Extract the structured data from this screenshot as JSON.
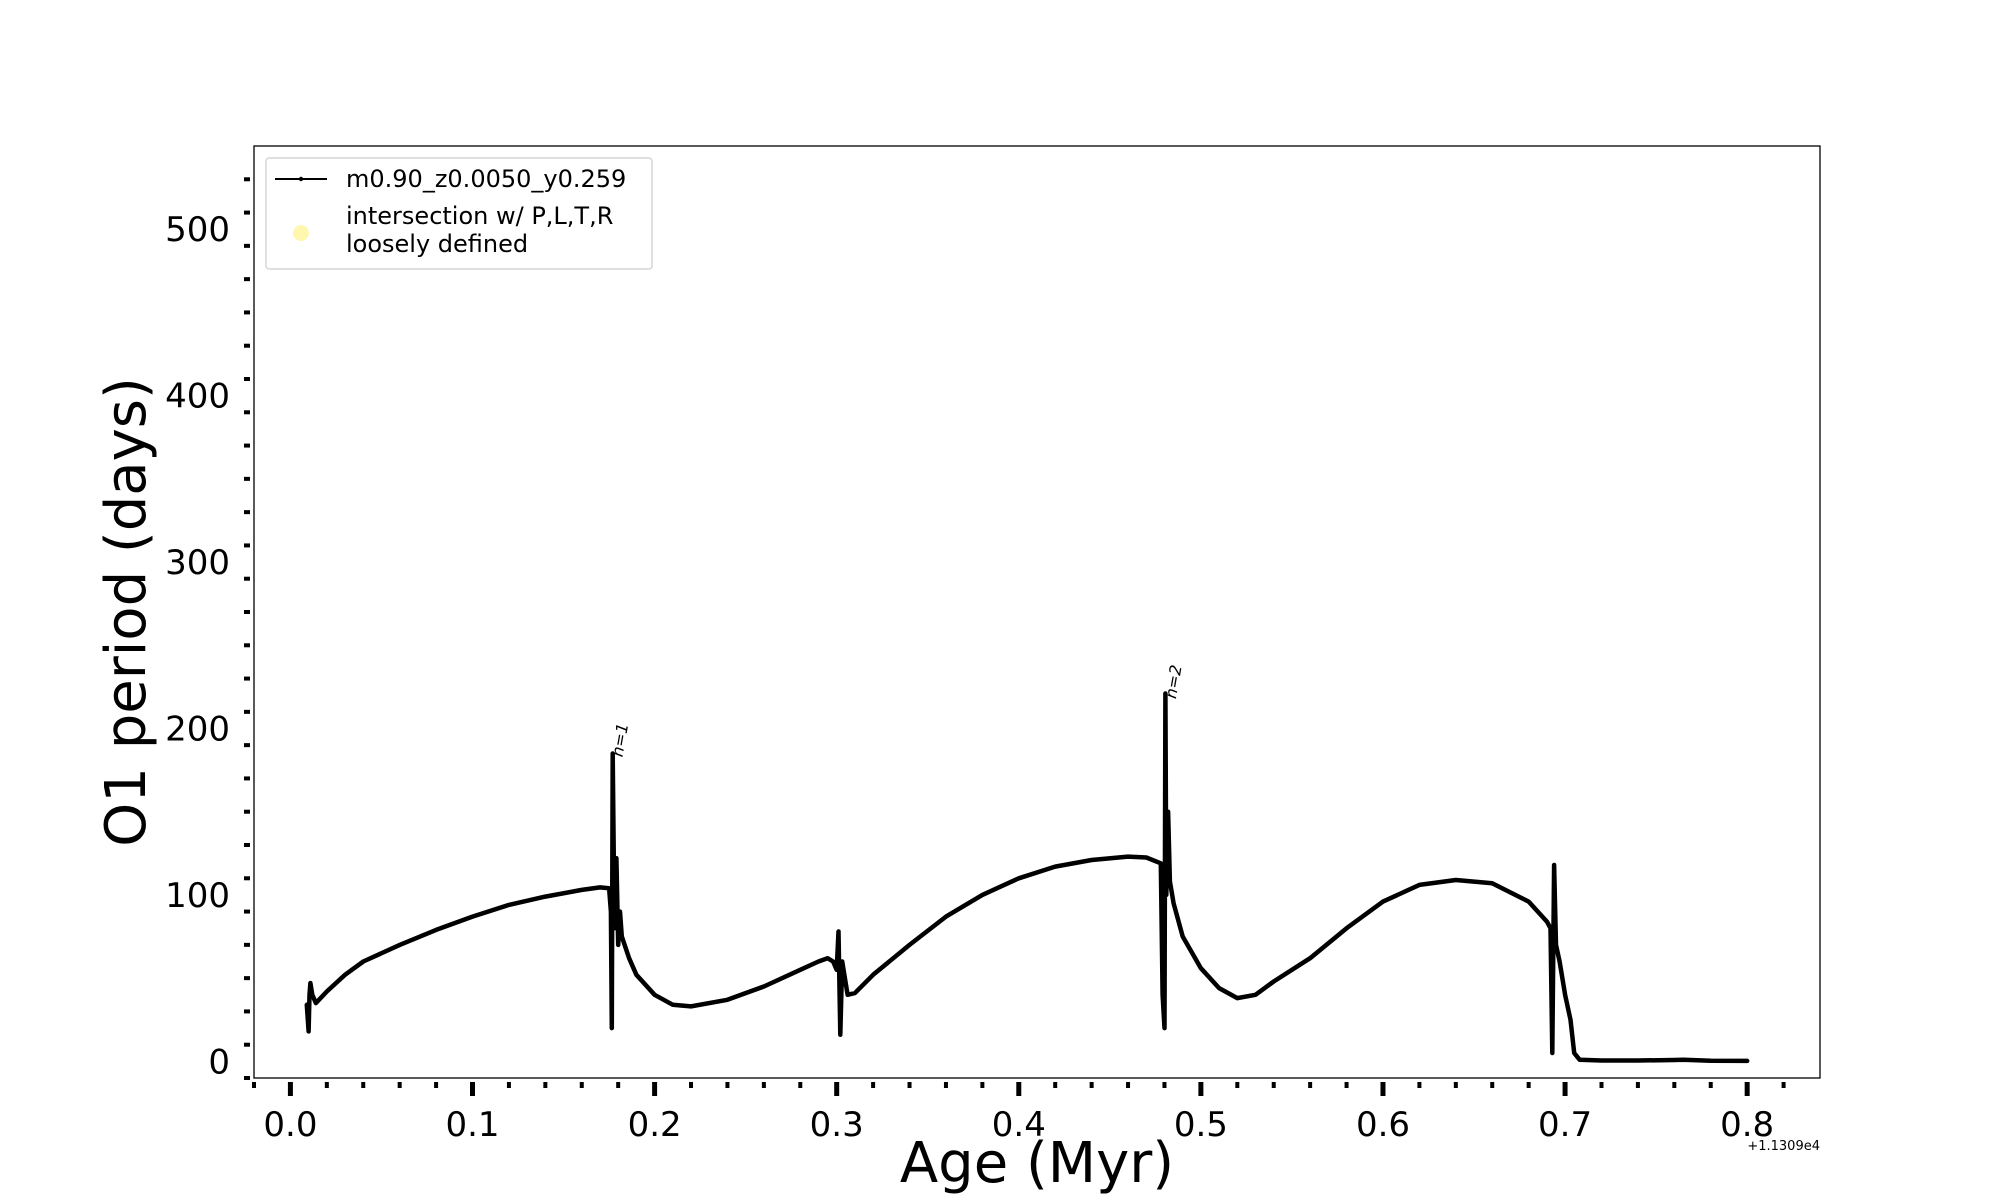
{
  "chart_data": {
    "type": "line",
    "title": "",
    "xlabel": "Age (Myr)",
    "ylabel": "O1 period (days)",
    "x_offset_label": "+1.1309e4",
    "xlim": [
      -0.02,
      0.84
    ],
    "ylim": [
      -10,
      550
    ],
    "x_ticks": [
      0.0,
      0.1,
      0.2,
      0.3,
      0.4,
      0.5,
      0.6,
      0.7,
      0.8
    ],
    "x_tick_labels": [
      "0.0",
      "0.1",
      "0.2",
      "0.3",
      "0.4",
      "0.5",
      "0.6",
      "0.7",
      "0.8"
    ],
    "y_ticks": [
      0,
      100,
      200,
      300,
      400,
      500
    ],
    "y_tick_labels": [
      "0",
      "100",
      "200",
      "300",
      "400",
      "500"
    ],
    "grid": false,
    "legend_position": "top-left",
    "legend": [
      {
        "label": "m0.90_z0.0050_y0.259",
        "marker": "line",
        "color": "#000000"
      },
      {
        "label": "intersection w/ P,L,T,R\nloosely defined",
        "marker": "circle",
        "color": "#fff7b0"
      }
    ],
    "annotations": [
      {
        "text": "n=1",
        "x": 0.179,
        "y": 185
      },
      {
        "text": "n=2",
        "x": 0.483,
        "y": 220
      }
    ],
    "series": [
      {
        "name": "m0.90_z0.0050_y0.259",
        "color": "#000000",
        "points": [
          [
            0.009,
            34
          ],
          [
            0.01,
            18
          ],
          [
            0.0105,
            40
          ],
          [
            0.011,
            47
          ],
          [
            0.012,
            40
          ],
          [
            0.014,
            35
          ],
          [
            0.02,
            42
          ],
          [
            0.03,
            52
          ],
          [
            0.04,
            60
          ],
          [
            0.06,
            70
          ],
          [
            0.08,
            79
          ],
          [
            0.1,
            87
          ],
          [
            0.12,
            94
          ],
          [
            0.14,
            99
          ],
          [
            0.16,
            103
          ],
          [
            0.17,
            104.5
          ],
          [
            0.175,
            104
          ],
          [
            0.176,
            90
          ],
          [
            0.1765,
            20
          ],
          [
            0.177,
            185
          ],
          [
            0.178,
            80
          ],
          [
            0.179,
            122
          ],
          [
            0.18,
            70
          ],
          [
            0.181,
            90
          ],
          [
            0.182,
            75
          ],
          [
            0.186,
            62
          ],
          [
            0.19,
            52
          ],
          [
            0.2,
            40
          ],
          [
            0.21,
            34
          ],
          [
            0.22,
            33
          ],
          [
            0.24,
            37
          ],
          [
            0.26,
            45
          ],
          [
            0.28,
            55
          ],
          [
            0.29,
            60
          ],
          [
            0.295,
            62
          ],
          [
            0.298,
            60
          ],
          [
            0.3,
            55
          ],
          [
            0.301,
            78
          ],
          [
            0.302,
            16
          ],
          [
            0.303,
            60
          ],
          [
            0.306,
            40
          ],
          [
            0.31,
            41
          ],
          [
            0.32,
            52
          ],
          [
            0.34,
            70
          ],
          [
            0.36,
            87
          ],
          [
            0.38,
            100
          ],
          [
            0.4,
            110
          ],
          [
            0.42,
            117
          ],
          [
            0.44,
            121
          ],
          [
            0.46,
            123
          ],
          [
            0.47,
            122.5
          ],
          [
            0.478,
            119
          ],
          [
            0.479,
            40
          ],
          [
            0.48,
            20
          ],
          [
            0.4805,
            221
          ],
          [
            0.481,
            100
          ],
          [
            0.482,
            150
          ],
          [
            0.483,
            108
          ],
          [
            0.485,
            95
          ],
          [
            0.49,
            75
          ],
          [
            0.5,
            56
          ],
          [
            0.51,
            44
          ],
          [
            0.52,
            38
          ],
          [
            0.53,
            40
          ],
          [
            0.54,
            48
          ],
          [
            0.56,
            62
          ],
          [
            0.58,
            80
          ],
          [
            0.6,
            96
          ],
          [
            0.62,
            106
          ],
          [
            0.64,
            109
          ],
          [
            0.66,
            107
          ],
          [
            0.68,
            96
          ],
          [
            0.69,
            84
          ],
          [
            0.692,
            80
          ],
          [
            0.693,
            5
          ],
          [
            0.694,
            118
          ],
          [
            0.695,
            70
          ],
          [
            0.697,
            60
          ],
          [
            0.7,
            40
          ],
          [
            0.703,
            25
          ],
          [
            0.705,
            5
          ],
          [
            0.708,
            1
          ],
          [
            0.72,
            0.5
          ],
          [
            0.74,
            0.5
          ],
          [
            0.76,
            0.8
          ],
          [
            0.765,
            1.0
          ],
          [
            0.78,
            0.4
          ],
          [
            0.8,
            0.3
          ]
        ]
      }
    ]
  }
}
